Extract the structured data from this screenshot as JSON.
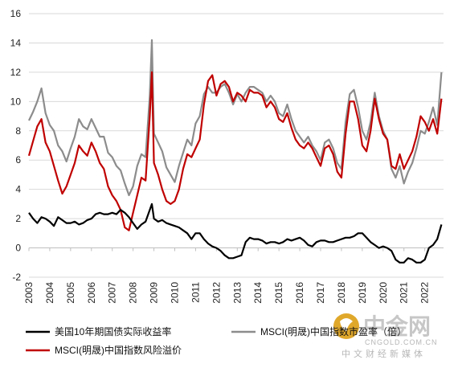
{
  "chart_data": {
    "type": "line",
    "title": "",
    "xlabel": "",
    "ylabel": "",
    "xlim": [
      2003.0,
      2022.9
    ],
    "ylim": [
      -2,
      16
    ],
    "yticks": [
      -2,
      0,
      2,
      4,
      6,
      8,
      10,
      12,
      14,
      16
    ],
    "xticks": [
      "2003",
      "2004",
      "2005",
      "2006",
      "2007",
      "2008",
      "2009",
      "2010",
      "2011",
      "2012",
      "2013",
      "2014",
      "2015",
      "2016",
      "2017",
      "2018",
      "2019",
      "2020",
      "2021",
      "2022"
    ],
    "grid": "horizontal",
    "legend_position": "bottom",
    "colors": {
      "real_yield": "#000000",
      "pe": "#8c8c8c",
      "erp": "#c00000"
    },
    "series": [
      {
        "name": "美国10年期国债实际收益率",
        "key": "real_yield",
        "x": [
          2003.0,
          2003.2,
          2003.4,
          2003.6,
          2003.8,
          2004.0,
          2004.2,
          2004.4,
          2004.6,
          2004.8,
          2005.0,
          2005.2,
          2005.4,
          2005.6,
          2005.8,
          2006.0,
          2006.2,
          2006.4,
          2006.6,
          2006.8,
          2007.0,
          2007.2,
          2007.4,
          2007.6,
          2007.8,
          2008.0,
          2008.2,
          2008.4,
          2008.6,
          2008.8,
          2008.9,
          2009.0,
          2009.2,
          2009.4,
          2009.6,
          2009.8,
          2010.0,
          2010.2,
          2010.4,
          2010.6,
          2010.8,
          2011.0,
          2011.2,
          2011.4,
          2011.6,
          2011.8,
          2012.0,
          2012.2,
          2012.4,
          2012.6,
          2012.8,
          2013.0,
          2013.2,
          2013.4,
          2013.6,
          2013.8,
          2014.0,
          2014.2,
          2014.4,
          2014.6,
          2014.8,
          2015.0,
          2015.2,
          2015.4,
          2015.6,
          2015.8,
          2016.0,
          2016.2,
          2016.4,
          2016.6,
          2016.8,
          2017.0,
          2017.2,
          2017.4,
          2017.6,
          2017.8,
          2018.0,
          2018.2,
          2018.4,
          2018.6,
          2018.8,
          2019.0,
          2019.2,
          2019.4,
          2019.6,
          2019.8,
          2020.0,
          2020.2,
          2020.4,
          2020.6,
          2020.8,
          2021.0,
          2021.2,
          2021.4,
          2021.6,
          2021.8,
          2022.0,
          2022.2,
          2022.4,
          2022.6,
          2022.8
        ],
        "values": [
          2.4,
          2.0,
          1.7,
          2.1,
          2.0,
          1.8,
          1.5,
          2.1,
          1.9,
          1.7,
          1.7,
          1.8,
          1.6,
          1.7,
          1.9,
          2.0,
          2.3,
          2.4,
          2.3,
          2.3,
          2.4,
          2.3,
          2.6,
          2.4,
          2.1,
          1.7,
          1.3,
          1.6,
          1.8,
          2.6,
          3.0,
          2.0,
          1.8,
          1.9,
          1.7,
          1.6,
          1.5,
          1.4,
          1.2,
          1.0,
          0.6,
          1.0,
          1.0,
          0.6,
          0.3,
          0.1,
          0.0,
          -0.2,
          -0.5,
          -0.7,
          -0.7,
          -0.6,
          -0.5,
          0.4,
          0.7,
          0.6,
          0.6,
          0.5,
          0.3,
          0.4,
          0.4,
          0.3,
          0.4,
          0.6,
          0.5,
          0.6,
          0.7,
          0.5,
          0.2,
          0.1,
          0.4,
          0.5,
          0.5,
          0.4,
          0.4,
          0.5,
          0.6,
          0.7,
          0.7,
          0.8,
          1.0,
          1.0,
          0.7,
          0.4,
          0.2,
          0.0,
          0.1,
          0.0,
          -0.2,
          -0.8,
          -1.0,
          -1.0,
          -0.7,
          -0.8,
          -1.0,
          -1.0,
          -0.8,
          0.0,
          0.2,
          0.6,
          1.6
        ]
      },
      {
        "name": "MSCI(明晟)中国指数市盈率（倍）",
        "key": "pe",
        "x": [
          2003.0,
          2003.2,
          2003.4,
          2003.6,
          2003.8,
          2004.0,
          2004.2,
          2004.4,
          2004.6,
          2004.8,
          2005.0,
          2005.2,
          2005.4,
          2005.6,
          2005.8,
          2006.0,
          2006.2,
          2006.4,
          2006.6,
          2006.8,
          2007.0,
          2007.2,
          2007.4,
          2007.6,
          2007.8,
          2008.0,
          2008.2,
          2008.4,
          2008.6,
          2008.8,
          2008.9,
          2009.0,
          2009.2,
          2009.4,
          2009.6,
          2009.8,
          2010.0,
          2010.2,
          2010.4,
          2010.6,
          2010.8,
          2011.0,
          2011.2,
          2011.4,
          2011.6,
          2011.8,
          2012.0,
          2012.2,
          2012.4,
          2012.6,
          2012.8,
          2013.0,
          2013.2,
          2013.4,
          2013.6,
          2013.8,
          2014.0,
          2014.2,
          2014.4,
          2014.6,
          2014.8,
          2015.0,
          2015.2,
          2015.4,
          2015.6,
          2015.8,
          2016.0,
          2016.2,
          2016.4,
          2016.6,
          2016.8,
          2017.0,
          2017.2,
          2017.4,
          2017.6,
          2017.8,
          2018.0,
          2018.2,
          2018.4,
          2018.6,
          2018.8,
          2019.0,
          2019.2,
          2019.4,
          2019.6,
          2019.8,
          2020.0,
          2020.2,
          2020.4,
          2020.6,
          2020.8,
          2021.0,
          2021.2,
          2021.4,
          2021.6,
          2021.8,
          2022.0,
          2022.2,
          2022.4,
          2022.6,
          2022.8
        ],
        "values": [
          8.7,
          9.3,
          10.0,
          10.9,
          9.2,
          8.4,
          8.0,
          7.0,
          6.6,
          5.9,
          6.8,
          7.6,
          8.8,
          8.3,
          8.1,
          8.8,
          8.2,
          7.6,
          7.6,
          6.5,
          6.2,
          5.6,
          5.3,
          4.4,
          3.6,
          4.2,
          5.6,
          6.4,
          6.2,
          10.4,
          14.2,
          7.8,
          7.2,
          6.6,
          5.5,
          5.0,
          4.5,
          5.6,
          6.5,
          7.4,
          7.0,
          8.5,
          9.0,
          10.5,
          11.0,
          10.6,
          10.6,
          11.0,
          11.2,
          10.6,
          9.8,
          10.5,
          10.0,
          10.6,
          11.0,
          11.0,
          10.8,
          10.6,
          10.0,
          10.4,
          10.0,
          9.2,
          9.0,
          9.8,
          8.8,
          8.0,
          7.6,
          7.2,
          7.6,
          7.0,
          6.6,
          6.0,
          7.2,
          7.4,
          6.8,
          5.8,
          5.4,
          8.6,
          10.5,
          10.8,
          9.6,
          8.0,
          7.4,
          8.6,
          10.6,
          9.0,
          8.0,
          7.4,
          5.4,
          4.8,
          5.6,
          4.4,
          5.2,
          5.8,
          6.8,
          8.0,
          7.8,
          8.6,
          9.6,
          8.4,
          12.0
        ]
      },
      {
        "name": "MSCI(明晟)中国指数风险溢价",
        "key": "erp",
        "x": [
          2003.0,
          2003.2,
          2003.4,
          2003.6,
          2003.8,
          2004.0,
          2004.2,
          2004.4,
          2004.6,
          2004.8,
          2005.0,
          2005.2,
          2005.4,
          2005.6,
          2005.8,
          2006.0,
          2006.2,
          2006.4,
          2006.6,
          2006.8,
          2007.0,
          2007.2,
          2007.4,
          2007.6,
          2007.8,
          2008.0,
          2008.2,
          2008.4,
          2008.6,
          2008.8,
          2008.9,
          2009.0,
          2009.2,
          2009.4,
          2009.6,
          2009.8,
          2010.0,
          2010.2,
          2010.4,
          2010.6,
          2010.8,
          2011.0,
          2011.2,
          2011.4,
          2011.6,
          2011.8,
          2012.0,
          2012.2,
          2012.4,
          2012.6,
          2012.8,
          2013.0,
          2013.2,
          2013.4,
          2013.6,
          2013.8,
          2014.0,
          2014.2,
          2014.4,
          2014.6,
          2014.8,
          2015.0,
          2015.2,
          2015.4,
          2015.6,
          2015.8,
          2016.0,
          2016.2,
          2016.4,
          2016.6,
          2016.8,
          2017.0,
          2017.2,
          2017.4,
          2017.6,
          2017.8,
          2018.0,
          2018.2,
          2018.4,
          2018.6,
          2018.8,
          2019.0,
          2019.2,
          2019.4,
          2019.6,
          2019.8,
          2020.0,
          2020.2,
          2020.4,
          2020.6,
          2020.8,
          2021.0,
          2021.2,
          2021.4,
          2021.6,
          2021.8,
          2022.0,
          2022.2,
          2022.4,
          2022.6,
          2022.8
        ],
        "values": [
          6.3,
          7.3,
          8.3,
          8.8,
          7.2,
          6.6,
          5.6,
          4.6,
          3.7,
          4.2,
          5.0,
          5.8,
          7.0,
          6.6,
          6.3,
          7.2,
          6.6,
          5.8,
          5.4,
          4.2,
          3.6,
          3.2,
          2.6,
          1.4,
          1.2,
          2.4,
          3.6,
          4.8,
          4.6,
          9.0,
          12.0,
          5.8,
          5.0,
          4.0,
          3.2,
          3.0,
          3.2,
          4.0,
          5.4,
          6.4,
          6.2,
          6.8,
          7.4,
          9.8,
          11.4,
          11.8,
          10.4,
          11.2,
          11.4,
          11.0,
          10.0,
          10.6,
          10.4,
          10.0,
          10.8,
          10.6,
          10.6,
          10.4,
          9.6,
          10.0,
          9.6,
          8.8,
          8.6,
          9.2,
          8.2,
          7.4,
          7.0,
          6.8,
          7.2,
          6.8,
          6.2,
          5.6,
          6.8,
          7.0,
          6.4,
          5.2,
          4.8,
          7.8,
          10.0,
          10.0,
          8.8,
          7.0,
          6.6,
          8.0,
          10.2,
          8.8,
          7.8,
          7.4,
          5.6,
          5.4,
          6.4,
          5.4,
          6.0,
          6.6,
          7.6,
          9.0,
          8.6,
          8.0,
          8.8,
          7.8,
          10.2
        ]
      }
    ]
  },
  "watermark": {
    "main": "中金网",
    "url": "CNGOLD.COM.CN",
    "sub": "中文财经新媒体"
  }
}
